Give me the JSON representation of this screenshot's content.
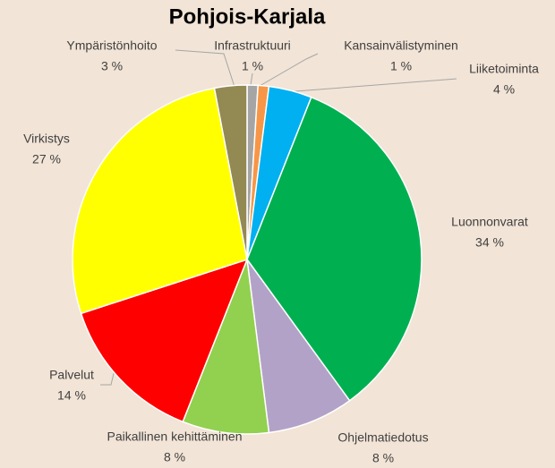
{
  "chart_data": {
    "type": "pie",
    "title": "Pohjois-Karjala",
    "categories": [
      "Infrastruktuuri",
      "Kansainvälistyminen",
      "Liiketoiminta",
      "Luonnonvarat",
      "Ohjelmatiedotus",
      "Paikallinen kehittäminen",
      "Palvelut",
      "Virkistys",
      "Ympäristönhoito"
    ],
    "values": [
      1,
      1,
      4,
      34,
      8,
      8,
      14,
      27,
      3
    ],
    "value_labels": [
      "1 %",
      "1 %",
      "4 %",
      "34 %",
      "8 %",
      "8 %",
      "14 %",
      "27 %",
      "3 %"
    ],
    "colors": [
      "#a5a5a5",
      "#f79646",
      "#00b0f0",
      "#00b050",
      "#b3a2c7",
      "#92d050",
      "#ff0000",
      "#ffff00",
      "#938953"
    ]
  }
}
